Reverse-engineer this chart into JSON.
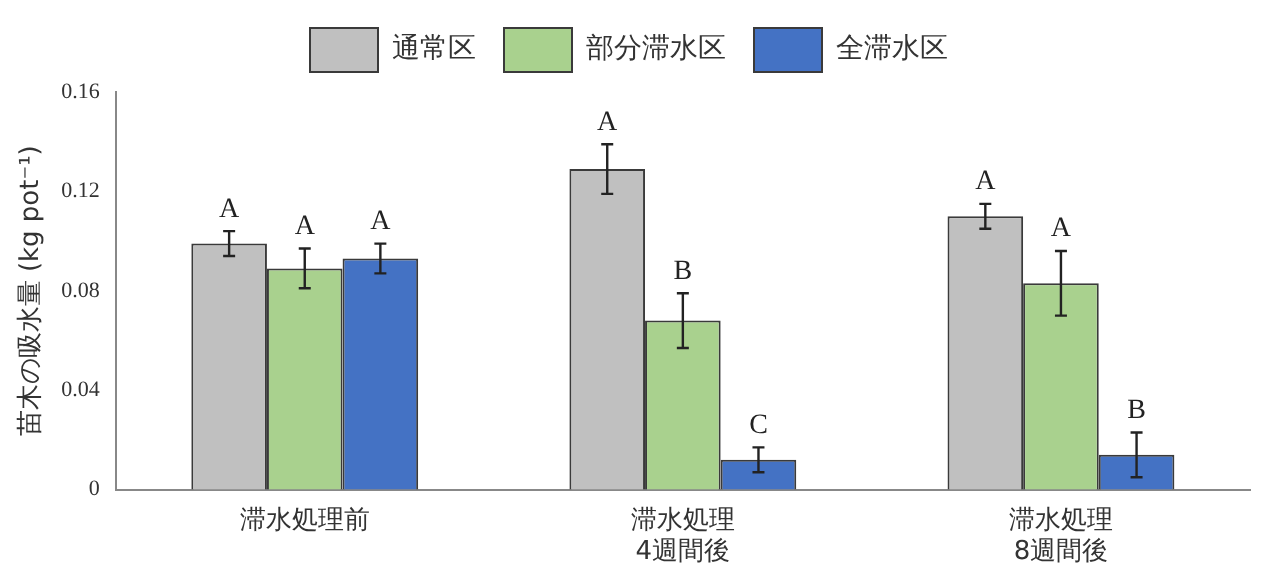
{
  "chart_data": {
    "type": "bar",
    "ylabel": "苗木の吸水量 (kg pot⁻¹)",
    "categories": [
      "滞水処理前",
      "滞水処理\n4週間後",
      "滞水処理\n8週間後"
    ],
    "series": [
      {
        "name": "通常区",
        "color": "#c0c0c0",
        "values": [
          0.099,
          0.129,
          0.11
        ],
        "errors": [
          0.005,
          0.01,
          0.005
        ],
        "value_labels": [
          "A",
          "A",
          "A"
        ]
      },
      {
        "name": "部分滞水区",
        "color": "#a9d18e",
        "values": [
          0.089,
          0.068,
          0.083
        ],
        "errors": [
          0.008,
          0.011,
          0.013
        ],
        "value_labels": [
          "A",
          "B",
          "A"
        ]
      },
      {
        "name": "全滞水区",
        "color": "#4472c4",
        "values": [
          0.093,
          0.012,
          0.014
        ],
        "errors": [
          0.006,
          0.005,
          0.009
        ],
        "value_labels": [
          "A",
          "C",
          "B"
        ]
      }
    ],
    "ylim": [
      0,
      0.16
    ],
    "yticks": [
      0,
      0.04,
      0.08,
      0.12,
      0.16
    ],
    "grid": false,
    "legend": "top"
  }
}
